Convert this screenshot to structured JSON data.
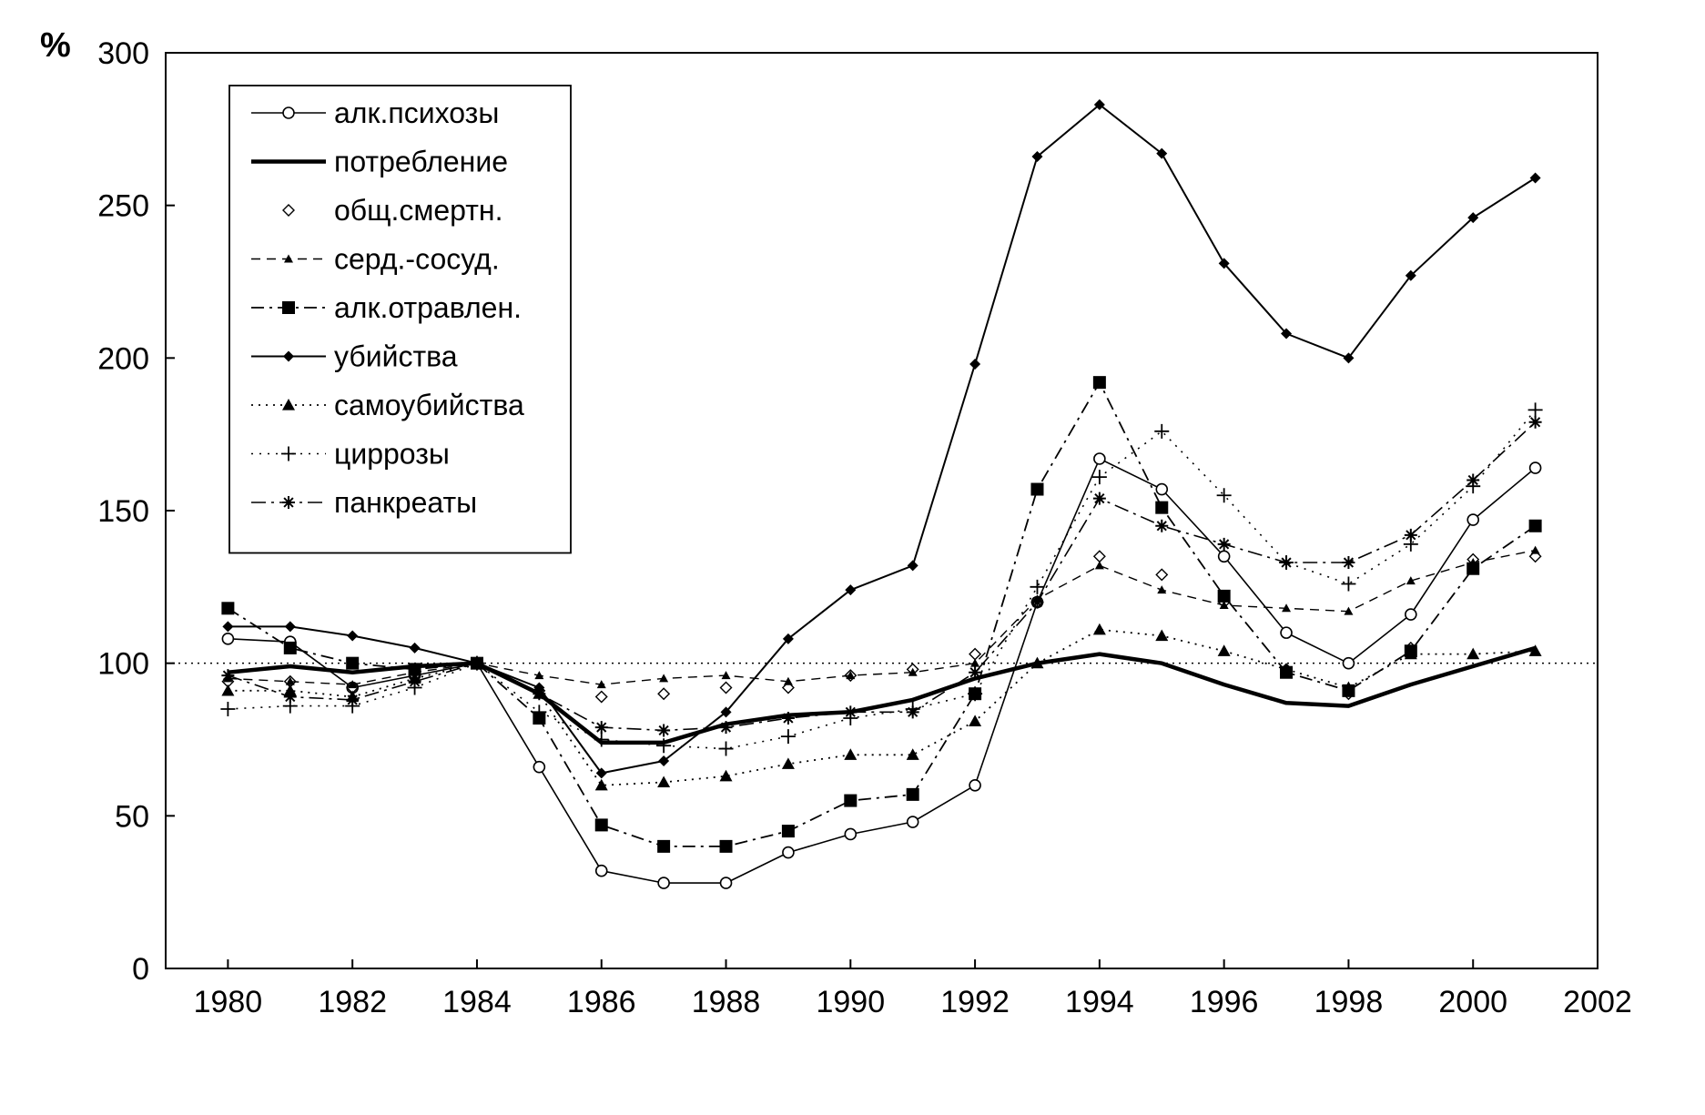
{
  "chart_data": {
    "type": "line",
    "title": "",
    "xlabel": "",
    "ylabel": "%",
    "xlim": [
      1979,
      2002
    ],
    "ylim": [
      0,
      300
    ],
    "x_ticks": [
      "1980",
      "1982",
      "1984",
      "1986",
      "1988",
      "1990",
      "1992",
      "1994",
      "1996",
      "1998",
      "2000",
      "2002"
    ],
    "y_ticks": [
      "0",
      "50",
      "100",
      "150",
      "200",
      "250",
      "300"
    ],
    "reference_line": 100,
    "grid": false,
    "legend_position": "top-left",
    "x": [
      1980,
      1981,
      1982,
      1983,
      1984,
      1985,
      1986,
      1987,
      1988,
      1989,
      1990,
      1991,
      1992,
      1993,
      1994,
      1995,
      1996,
      1997,
      1998,
      1999,
      2000,
      2001
    ],
    "series": [
      {
        "name": "алк.психозы",
        "style": "open-circle-solid-thin",
        "values": [
          108,
          107,
          92,
          96,
          100,
          66,
          32,
          28,
          28,
          38,
          44,
          48,
          60,
          120,
          167,
          157,
          135,
          110,
          100,
          116,
          147,
          164
        ]
      },
      {
        "name": "потребление",
        "style": "thick-solid",
        "values": [
          97,
          99,
          97,
          99,
          100,
          90,
          74,
          74,
          80,
          83,
          84,
          88,
          95,
          100,
          103,
          100,
          93,
          87,
          86,
          93,
          99,
          105
        ]
      },
      {
        "name": "общ.смертн.",
        "style": "open-diamond-none",
        "values": [
          94,
          94,
          92,
          96,
          100,
          91,
          89,
          90,
          92,
          92,
          96,
          98,
          103,
          120,
          135,
          129,
          120,
          98,
          90,
          105,
          134,
          135
        ]
      },
      {
        "name": "серд.-сосуд.",
        "style": "small-triangle-dash",
        "values": [
          95,
          94,
          93,
          97,
          100,
          96,
          93,
          95,
          96,
          94,
          96,
          97,
          100,
          121,
          132,
          124,
          119,
          118,
          117,
          127,
          133,
          137
        ]
      },
      {
        "name": "алк.отравлен.",
        "style": "filled-square-dashdot",
        "values": [
          118,
          105,
          100,
          98,
          100,
          82,
          47,
          40,
          40,
          45,
          55,
          57,
          90,
          157,
          192,
          151,
          122,
          97,
          91,
          104,
          131,
          145
        ]
      },
      {
        "name": "убийства",
        "style": "filled-diamond-solid",
        "values": [
          112,
          112,
          109,
          105,
          100,
          92,
          64,
          68,
          84,
          108,
          124,
          132,
          198,
          266,
          283,
          267,
          231,
          208,
          200,
          227,
          246,
          259
        ]
      },
      {
        "name": "самоубийства",
        "style": "filled-triangle-dotted",
        "values": [
          91,
          91,
          89,
          95,
          100,
          90,
          60,
          61,
          63,
          67,
          70,
          70,
          81,
          100,
          111,
          109,
          104,
          98,
          92,
          103,
          103,
          104
        ]
      },
      {
        "name": "циррозы",
        "style": "plus-dotted",
        "values": [
          85,
          86,
          86,
          92,
          100,
          84,
          75,
          73,
          72,
          76,
          82,
          85,
          90,
          125,
          161,
          176,
          155,
          133,
          126,
          139,
          158,
          183
        ]
      },
      {
        "name": "панкреаты",
        "style": "star-dashdot",
        "values": [
          96,
          89,
          88,
          94,
          100,
          90,
          79,
          78,
          79,
          82,
          84,
          84,
          97,
          120,
          154,
          145,
          139,
          133,
          133,
          142,
          160,
          179
        ]
      }
    ]
  }
}
